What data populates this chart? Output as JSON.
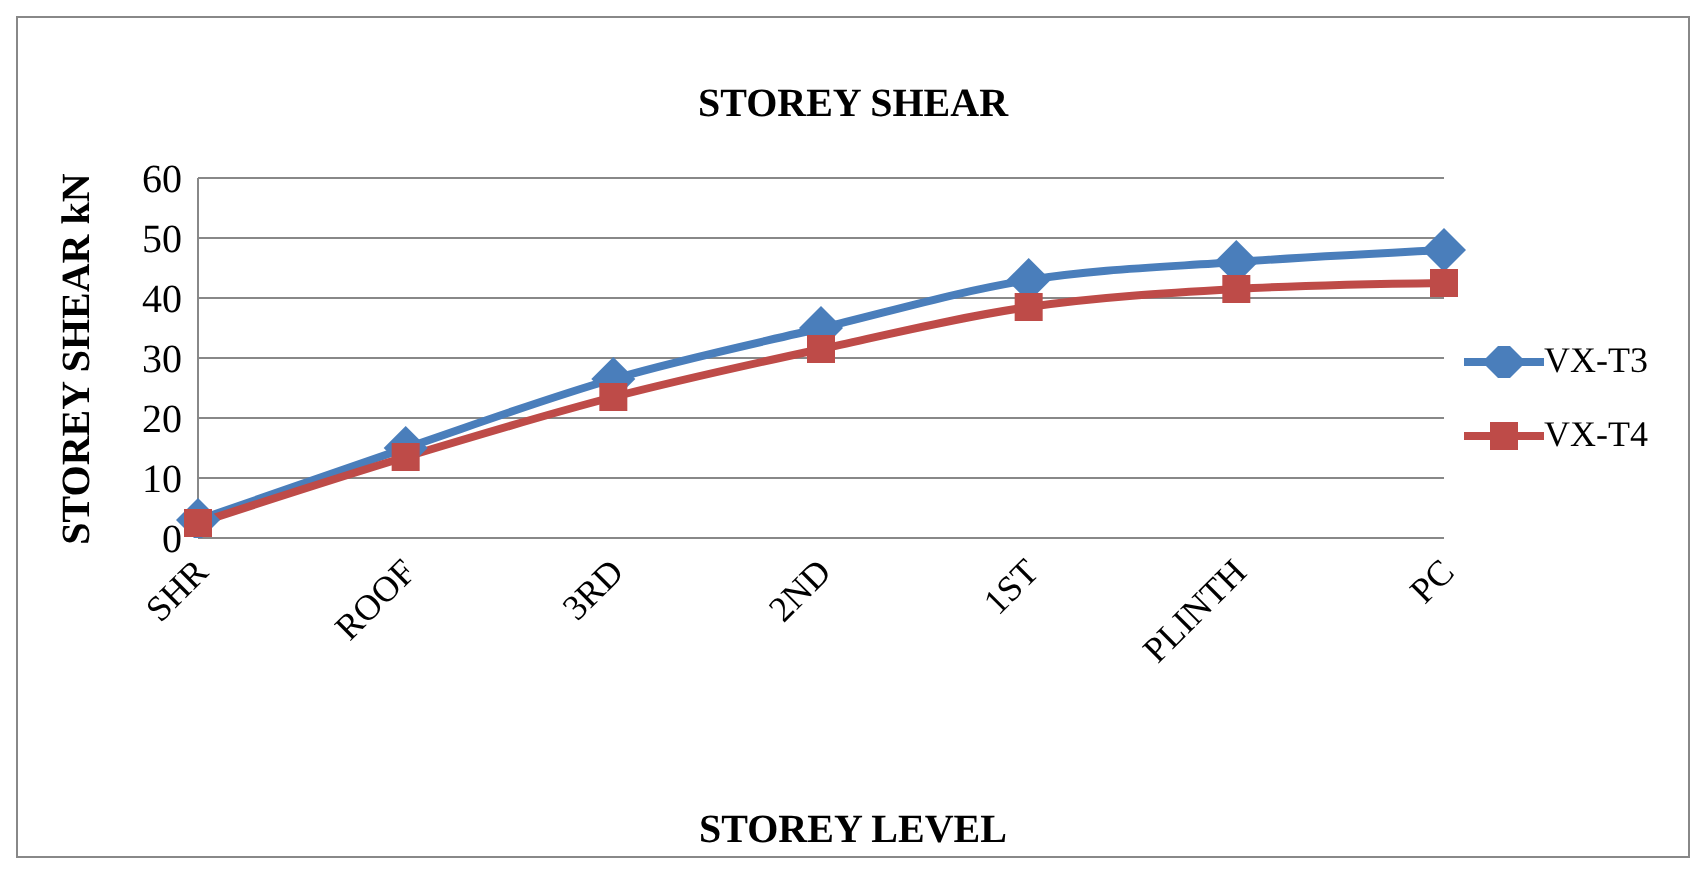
{
  "chart_data": {
    "type": "line",
    "title": "STOREY SHEAR",
    "xlabel": "STOREY LEVEL",
    "ylabel": "STOREY SHEAR kN",
    "categories": [
      "SHR",
      "ROOF",
      "3RD",
      "2ND",
      "1ST",
      "PLINTH",
      "PC"
    ],
    "series": [
      {
        "name": "VX-T3",
        "color": "#4a7ebb",
        "marker": "diamond",
        "values": [
          3,
          15,
          26.5,
          35,
          43,
          46,
          48
        ]
      },
      {
        "name": "VX-T4",
        "color": "#be4b48",
        "marker": "square",
        "values": [
          2.5,
          13.5,
          23.5,
          31.5,
          38.5,
          41.5,
          42.5
        ]
      }
    ],
    "ylim": [
      0,
      60
    ],
    "yticks": [
      0,
      10,
      20,
      30,
      40,
      50,
      60
    ],
    "grid": "y",
    "legend": "right"
  }
}
